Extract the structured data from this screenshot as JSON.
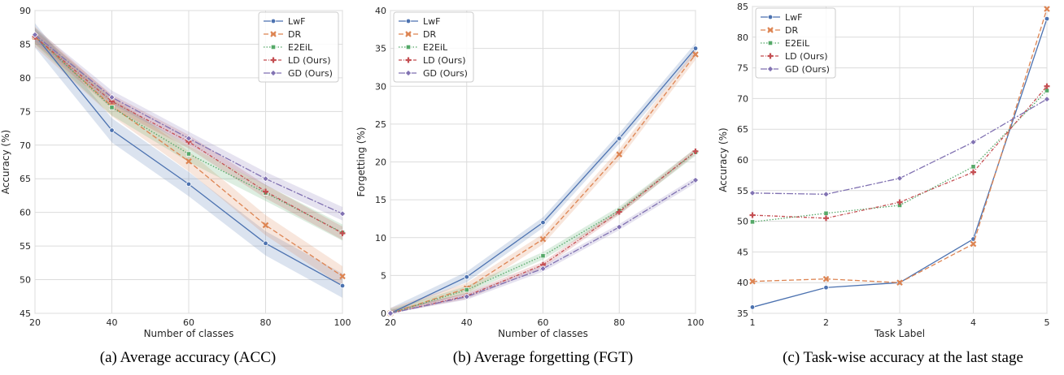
{
  "chart_data": [
    {
      "type": "line",
      "caption": "(a)  Average accuracy (ACC)",
      "xlabel": "Number of classes",
      "ylabel": "Accuracy (%)",
      "x": [
        20,
        40,
        60,
        80,
        100
      ],
      "xticks": [
        "20",
        "40",
        "60",
        "80",
        "100"
      ],
      "xlim": [
        20,
        100
      ],
      "ylim": [
        45,
        90
      ],
      "yticks": [
        "45",
        "50",
        "55",
        "60",
        "65",
        "70",
        "75",
        "80",
        "85",
        "90"
      ],
      "grid": true,
      "legend_position": "top-right",
      "confidence_bands": true,
      "series": [
        {
          "name": "LwF",
          "values": [
            86.3,
            72.2,
            64.2,
            55.4,
            49.1
          ],
          "band": 1.8
        },
        {
          "name": "DR",
          "values": [
            86.1,
            75.8,
            67.6,
            58.1,
            50.5
          ],
          "band": 1.5
        },
        {
          "name": "E2EiL",
          "values": [
            86.2,
            75.6,
            68.7,
            62.9,
            57.0
          ],
          "band": 1.2
        },
        {
          "name": "LD (Ours)",
          "values": [
            86.1,
            76.5,
            70.5,
            63.1,
            56.9
          ],
          "band": 1.0
        },
        {
          "name": "GD (Ours)",
          "values": [
            86.4,
            77.1,
            71.0,
            65.0,
            59.8
          ],
          "band": 1.0
        }
      ]
    },
    {
      "type": "line",
      "caption": "(b)  Average forgetting (FGT)",
      "xlabel": "Number of classes",
      "ylabel": "Forgetting (%)",
      "x": [
        20,
        40,
        60,
        80,
        100
      ],
      "xticks": [
        "20",
        "40",
        "60",
        "80",
        "100"
      ],
      "xlim": [
        20,
        100
      ],
      "ylim": [
        0,
        40
      ],
      "yticks": [
        "0",
        "5",
        "10",
        "15",
        "20",
        "25",
        "30",
        "35",
        "40"
      ],
      "grid": true,
      "legend_position": "top-left",
      "confidence_bands": true,
      "series": [
        {
          "name": "LwF",
          "values": [
            0,
            4.8,
            12.0,
            23.1,
            35.0
          ],
          "band": 0.7
        },
        {
          "name": "DR",
          "values": [
            0,
            3.3,
            9.8,
            21.0,
            34.2
          ],
          "band": 0.7
        },
        {
          "name": "E2EiL",
          "values": [
            0,
            3.1,
            7.6,
            13.6,
            21.3
          ],
          "band": 0.5
        },
        {
          "name": "LD (Ours)",
          "values": [
            0,
            2.3,
            6.4,
            13.4,
            21.4
          ],
          "band": 0.4
        },
        {
          "name": "GD (Ours)",
          "values": [
            0,
            2.2,
            5.9,
            11.4,
            17.6
          ],
          "band": 0.4
        }
      ]
    },
    {
      "type": "line",
      "caption": "(c)  Task-wise accuracy at the last stage",
      "xlabel": "Task Label",
      "ylabel": "Accuracy (%)",
      "x": [
        1,
        2,
        3,
        4,
        5
      ],
      "xticks": [
        "1",
        "2",
        "3",
        "4",
        "5"
      ],
      "xlim": [
        1,
        5
      ],
      "ylim": [
        35,
        85
      ],
      "yticks": [
        "35",
        "40",
        "45",
        "50",
        "55",
        "60",
        "65",
        "70",
        "75",
        "80",
        "85"
      ],
      "grid": true,
      "legend_position": "top-left",
      "confidence_bands": false,
      "series": [
        {
          "name": "LwF",
          "values": [
            36.0,
            39.2,
            40.0,
            47.1,
            83.0
          ]
        },
        {
          "name": "DR",
          "values": [
            40.2,
            40.6,
            40.0,
            46.3,
            84.6
          ]
        },
        {
          "name": "E2EiL",
          "values": [
            49.9,
            51.3,
            52.6,
            58.9,
            71.3
          ]
        },
        {
          "name": "LD (Ours)",
          "values": [
            51.0,
            50.5,
            53.1,
            58.0,
            72.0
          ]
        },
        {
          "name": "GD (Ours)",
          "values": [
            54.6,
            54.4,
            57.0,
            62.9,
            69.9
          ]
        }
      ]
    }
  ],
  "series_styles": [
    {
      "name": "LwF",
      "color": "#4c72b0",
      "dash": "",
      "marker": "circle"
    },
    {
      "name": "DR",
      "color": "#dd8452",
      "dash": "6,3",
      "marker": "x"
    },
    {
      "name": "E2EiL",
      "color": "#55a868",
      "dash": "1.5,2",
      "marker": "square"
    },
    {
      "name": "LD (Ours)",
      "color": "#c44e52",
      "dash": "4,2,1,2",
      "marker": "plus"
    },
    {
      "name": "GD (Ours)",
      "color": "#8172b2",
      "dash": "8,2,2,2",
      "marker": "diamond"
    }
  ]
}
